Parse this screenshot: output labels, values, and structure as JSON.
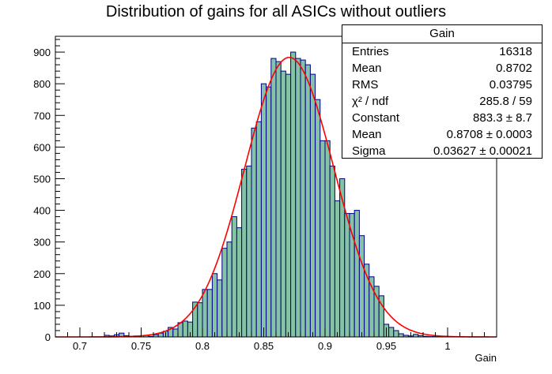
{
  "chart_data": {
    "type": "bar",
    "title": "Distribution of gains for all ASICs without outliers",
    "xlabel": "Gain",
    "ylabel": "",
    "xlim": [
      0.68,
      1.04
    ],
    "ylim": [
      0,
      950
    ],
    "bin_width": 0.004,
    "x_ticks": [
      "0.7",
      "0.75",
      "0.8",
      "0.85",
      "0.9",
      "0.95",
      "1"
    ],
    "y_ticks": [
      "0",
      "100",
      "200",
      "300",
      "400",
      "500",
      "600",
      "700",
      "800",
      "900"
    ],
    "colors": {
      "fill": "#86c2a5",
      "edge": "#000080",
      "fit": "#ff0000"
    },
    "bins_x": [
      0.688,
      0.692,
      0.696,
      0.7,
      0.704,
      0.708,
      0.712,
      0.716,
      0.72,
      0.724,
      0.728,
      0.732,
      0.736,
      0.74,
      0.744,
      0.748,
      0.752,
      0.756,
      0.76,
      0.764,
      0.768,
      0.772,
      0.776,
      0.78,
      0.784,
      0.788,
      0.792,
      0.796,
      0.8,
      0.804,
      0.808,
      0.812,
      0.816,
      0.82,
      0.824,
      0.828,
      0.832,
      0.836,
      0.84,
      0.844,
      0.848,
      0.852,
      0.856,
      0.86,
      0.864,
      0.868,
      0.872,
      0.876,
      0.88,
      0.884,
      0.888,
      0.892,
      0.896,
      0.9,
      0.904,
      0.908,
      0.912,
      0.916,
      0.92,
      0.924,
      0.928,
      0.932,
      0.936,
      0.94,
      0.944,
      0.948,
      0.952,
      0.956,
      0.96,
      0.964,
      0.968,
      0.972,
      0.976,
      0.98,
      0.984,
      0.988,
      0.992,
      0.996,
      1.0,
      1.004,
      1.008,
      1.012,
      1.016,
      1.02,
      1.024,
      1.028,
      1.032,
      1.036
    ],
    "values": [
      0,
      0,
      0,
      0,
      0,
      0,
      0,
      0,
      5,
      3,
      7,
      12,
      4,
      2,
      3,
      0,
      5,
      2,
      7,
      12,
      18,
      30,
      25,
      45,
      50,
      47,
      110,
      108,
      150,
      150,
      200,
      180,
      280,
      300,
      380,
      345,
      530,
      540,
      660,
      680,
      800,
      790,
      880,
      870,
      840,
      830,
      900,
      880,
      875,
      860,
      830,
      750,
      620,
      620,
      540,
      430,
      500,
      390,
      390,
      400,
      320,
      230,
      190,
      160,
      130,
      40,
      30,
      20,
      10,
      5,
      3,
      8,
      4,
      2,
      1,
      1,
      0,
      0,
      0,
      0,
      0,
      0,
      0,
      0,
      0,
      0,
      0,
      0
    ],
    "fit": {
      "function": "gaus",
      "constant": 883.3,
      "mean": 0.8708,
      "sigma": 0.03627
    }
  },
  "stats": {
    "title": "Gain",
    "rows": [
      {
        "label": "Entries",
        "value": "16318"
      },
      {
        "label": "Mean",
        "value": "0.8702"
      },
      {
        "label": "RMS",
        "value": "0.03795"
      },
      {
        "label": "χ² / ndf",
        "value": "285.8 / 59"
      },
      {
        "label": "Constant",
        "value": "883.3 ± 8.7"
      },
      {
        "label": "Mean",
        "value": "0.8708 ± 0.0003"
      },
      {
        "label": "Sigma",
        "value": "0.03627 ± 0.00021"
      }
    ]
  }
}
